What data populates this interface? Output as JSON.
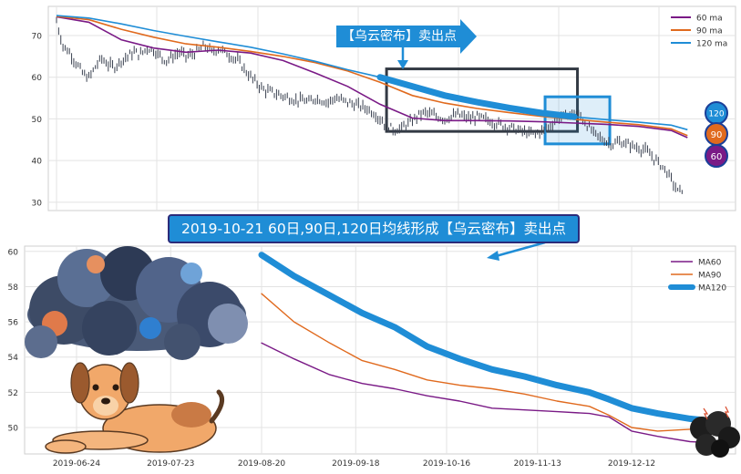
{
  "colors": {
    "ma60": "#7a1a86",
    "ma90": "#e06a1e",
    "ma120": "#1f8dd6",
    "candles": "#3a4150",
    "box_dark": "#333a44",
    "box_blue": "#1f8dd6"
  },
  "top_callout": "【乌云密布】卖出点",
  "title_callout": "2019-10-21 60日,90日,120日均线形成【乌云密布】卖出点",
  "badges": {
    "b120": "120",
    "b90": "90",
    "b60": "60"
  },
  "illustrations": [
    "storm-cloud-illustration",
    "dog-illustration",
    "small-dark-cloud-icon"
  ],
  "chart_data": [
    {
      "type": "line",
      "panel": "top",
      "ylim": [
        28,
        77
      ],
      "yticks": [
        30,
        40,
        50,
        60,
        70
      ],
      "xlim": [
        0,
        100
      ],
      "legend": {
        "position": "top-right",
        "entries": [
          "60 ma",
          "90 ma",
          "120 ma"
        ]
      },
      "grid": true,
      "series": [
        {
          "name": "60 ma",
          "x": [
            0,
            5,
            10,
            15,
            20,
            25,
            30,
            35,
            40,
            45,
            50,
            55,
            60,
            65,
            70,
            75,
            80,
            85,
            90,
            95,
            97.5
          ],
          "values": [
            74.5,
            73.2,
            69.0,
            67.0,
            66.0,
            66.5,
            65.8,
            64.0,
            61.0,
            57.8,
            53.5,
            50.2,
            49.6,
            49.6,
            49.5,
            49.3,
            49.0,
            48.7,
            48.2,
            47.2,
            45.5
          ]
        },
        {
          "name": "90 ma",
          "x": [
            0,
            5,
            10,
            15,
            20,
            25,
            30,
            35,
            40,
            45,
            50,
            55,
            60,
            65,
            70,
            75,
            80,
            85,
            90,
            95,
            97.5
          ],
          "values": [
            74.6,
            73.8,
            71.5,
            69.6,
            68.0,
            67.2,
            66.2,
            65.0,
            63.5,
            61.5,
            58.8,
            55.6,
            53.8,
            52.5,
            51.5,
            50.6,
            49.9,
            49.2,
            48.6,
            47.6,
            46.0
          ]
        },
        {
          "name": "120 ma",
          "x": [
            0,
            5,
            10,
            15,
            20,
            25,
            30,
            35,
            40,
            45,
            50,
            55,
            60,
            65,
            70,
            75,
            80,
            85,
            90,
            95,
            97.5
          ],
          "values": [
            74.8,
            74.2,
            72.8,
            71.2,
            69.8,
            68.5,
            67.2,
            65.6,
            63.8,
            61.8,
            60.0,
            57.8,
            55.6,
            54.0,
            52.6,
            51.4,
            50.5,
            49.8,
            49.2,
            48.5,
            47.4
          ]
        }
      ],
      "candles_close": [
        {
          "x": 0,
          "y": 73.5
        },
        {
          "x": 1,
          "y": 67.5
        },
        {
          "x": 2,
          "y": 66.0
        },
        {
          "x": 3,
          "y": 63.5
        },
        {
          "x": 4,
          "y": 61.0
        },
        {
          "x": 5,
          "y": 59.8
        },
        {
          "x": 6,
          "y": 62.5
        },
        {
          "x": 7,
          "y": 64.5
        },
        {
          "x": 8,
          "y": 63.0
        },
        {
          "x": 9,
          "y": 62.5
        },
        {
          "x": 10,
          "y": 64.0
        },
        {
          "x": 11,
          "y": 65.0
        },
        {
          "x": 12,
          "y": 66.0
        },
        {
          "x": 13,
          "y": 65.5
        },
        {
          "x": 14,
          "y": 67.0
        },
        {
          "x": 15,
          "y": 66.5
        },
        {
          "x": 16,
          "y": 65.0
        },
        {
          "x": 17,
          "y": 64.0
        },
        {
          "x": 18,
          "y": 65.0
        },
        {
          "x": 19,
          "y": 66.0
        },
        {
          "x": 20,
          "y": 65.0
        },
        {
          "x": 21,
          "y": 65.5
        },
        {
          "x": 22,
          "y": 66.5
        },
        {
          "x": 23,
          "y": 67.5
        },
        {
          "x": 24,
          "y": 66.0
        },
        {
          "x": 25,
          "y": 67.0
        },
        {
          "x": 26,
          "y": 66.0
        },
        {
          "x": 27,
          "y": 65.0
        },
        {
          "x": 28,
          "y": 64.0
        },
        {
          "x": 29,
          "y": 62.0
        },
        {
          "x": 30,
          "y": 60.0
        },
        {
          "x": 31,
          "y": 58.5
        },
        {
          "x": 32,
          "y": 57.0
        },
        {
          "x": 33,
          "y": 56.5
        },
        {
          "x": 34,
          "y": 56.0
        },
        {
          "x": 35,
          "y": 55.5
        },
        {
          "x": 36,
          "y": 55.0
        },
        {
          "x": 37,
          "y": 54.5
        },
        {
          "x": 38,
          "y": 54.5
        },
        {
          "x": 39,
          "y": 54.0
        },
        {
          "x": 40,
          "y": 55.0
        },
        {
          "x": 41,
          "y": 54.5
        },
        {
          "x": 42,
          "y": 54.0
        },
        {
          "x": 43,
          "y": 55.0
        },
        {
          "x": 44,
          "y": 54.5
        },
        {
          "x": 45,
          "y": 54.0
        },
        {
          "x": 46,
          "y": 53.5
        },
        {
          "x": 47,
          "y": 53.0
        },
        {
          "x": 48,
          "y": 52.5
        },
        {
          "x": 49,
          "y": 51.5
        },
        {
          "x": 50,
          "y": 50.0
        },
        {
          "x": 51,
          "y": 48.5
        },
        {
          "x": 52,
          "y": 47.5
        },
        {
          "x": 53,
          "y": 47.5
        },
        {
          "x": 54,
          "y": 48.5
        },
        {
          "x": 55,
          "y": 49.5
        },
        {
          "x": 56,
          "y": 51.0
        },
        {
          "x": 57,
          "y": 51.5
        },
        {
          "x": 58,
          "y": 51.0
        },
        {
          "x": 59,
          "y": 50.5
        },
        {
          "x": 60,
          "y": 50.0
        },
        {
          "x": 61,
          "y": 50.5
        },
        {
          "x": 62,
          "y": 51.0
        },
        {
          "x": 63,
          "y": 50.5
        },
        {
          "x": 64,
          "y": 50.0
        },
        {
          "x": 65,
          "y": 50.5
        },
        {
          "x": 66,
          "y": 50.0
        },
        {
          "x": 67,
          "y": 49.5
        },
        {
          "x": 68,
          "y": 49.0
        },
        {
          "x": 69,
          "y": 48.5
        },
        {
          "x": 70,
          "y": 48.0
        },
        {
          "x": 71,
          "y": 47.5
        },
        {
          "x": 72,
          "y": 47.0
        },
        {
          "x": 73,
          "y": 46.5
        },
        {
          "x": 74,
          "y": 46.5
        },
        {
          "x": 75,
          "y": 47.0
        },
        {
          "x": 76,
          "y": 48.0
        },
        {
          "x": 77,
          "y": 49.5
        },
        {
          "x": 78,
          "y": 50.5
        },
        {
          "x": 79,
          "y": 51.0
        },
        {
          "x": 80,
          "y": 51.5
        },
        {
          "x": 81,
          "y": 50.5
        },
        {
          "x": 82,
          "y": 48.5
        },
        {
          "x": 83,
          "y": 46.5
        },
        {
          "x": 84,
          "y": 45.5
        },
        {
          "x": 85,
          "y": 44.5
        },
        {
          "x": 86,
          "y": 44.0
        },
        {
          "x": 87,
          "y": 44.5
        },
        {
          "x": 88,
          "y": 44.0
        },
        {
          "x": 89,
          "y": 43.5
        },
        {
          "x": 90,
          "y": 43.0
        },
        {
          "x": 91,
          "y": 42.5
        },
        {
          "x": 92,
          "y": 41.0
        },
        {
          "x": 93,
          "y": 39.5
        },
        {
          "x": 94,
          "y": 38.0
        },
        {
          "x": 95,
          "y": 35.5
        },
        {
          "x": 96,
          "y": 32.5
        },
        {
          "x": 97,
          "y": 33.5
        }
      ],
      "highlight_boxes": [
        {
          "style": "dark",
          "x_range": [
            51,
            80.5
          ],
          "y_range": [
            47,
            62
          ]
        },
        {
          "style": "blue-filled",
          "x_range": [
            75.5,
            85.5
          ],
          "y_range": [
            44,
            55.3
          ]
        }
      ]
    },
    {
      "type": "line",
      "panel": "bottom",
      "ylim": [
        48.5,
        60.3
      ],
      "yticks": [
        50,
        52,
        54,
        56,
        58,
        60
      ],
      "xlim": [
        "2019-06-08",
        "2020-01-13"
      ],
      "x_tick_labels": [
        "2019-06-24",
        "2019-07-23",
        "2019-08-20",
        "2019-09-18",
        "2019-10-16",
        "2019-11-13",
        "2019-12-12"
      ],
      "legend": {
        "position": "top-right",
        "entries": [
          "MA60",
          "MA90",
          "MA120"
        ]
      },
      "grid": true,
      "series": [
        {
          "name": "MA60",
          "x": [
            "2019-08-20",
            "2019-08-30",
            "2019-09-10",
            "2019-09-20",
            "2019-09-30",
            "2019-10-10",
            "2019-10-20",
            "2019-10-30",
            "2019-11-09",
            "2019-11-19",
            "2019-11-29",
            "2019-12-05",
            "2019-12-12",
            "2019-12-20",
            "2019-12-30",
            "2020-01-10"
          ],
          "values": [
            54.8,
            53.9,
            53.0,
            52.5,
            52.2,
            51.8,
            51.5,
            51.1,
            51.0,
            50.9,
            50.8,
            50.6,
            49.8,
            49.5,
            49.2,
            49.1
          ]
        },
        {
          "name": "MA90",
          "x": [
            "2019-08-20",
            "2019-08-30",
            "2019-09-10",
            "2019-09-20",
            "2019-09-30",
            "2019-10-10",
            "2019-10-20",
            "2019-10-30",
            "2019-11-09",
            "2019-11-19",
            "2019-11-29",
            "2019-12-05",
            "2019-12-12",
            "2019-12-20",
            "2019-12-30",
            "2020-01-10"
          ],
          "values": [
            57.6,
            56.0,
            54.8,
            53.8,
            53.3,
            52.7,
            52.4,
            52.2,
            51.9,
            51.5,
            51.2,
            50.7,
            50.0,
            49.8,
            49.9,
            50.0
          ]
        },
        {
          "name": "MA120",
          "x": [
            "2019-08-20",
            "2019-08-30",
            "2019-09-10",
            "2019-09-20",
            "2019-09-30",
            "2019-10-10",
            "2019-10-20",
            "2019-10-30",
            "2019-11-09",
            "2019-11-19",
            "2019-11-29",
            "2019-12-05",
            "2019-12-12",
            "2019-12-20",
            "2019-12-30",
            "2020-01-10"
          ],
          "values": [
            59.8,
            58.6,
            57.5,
            56.5,
            55.7,
            54.6,
            53.9,
            53.3,
            52.9,
            52.4,
            52.0,
            51.6,
            51.1,
            50.8,
            50.5,
            50.3
          ]
        }
      ]
    }
  ]
}
